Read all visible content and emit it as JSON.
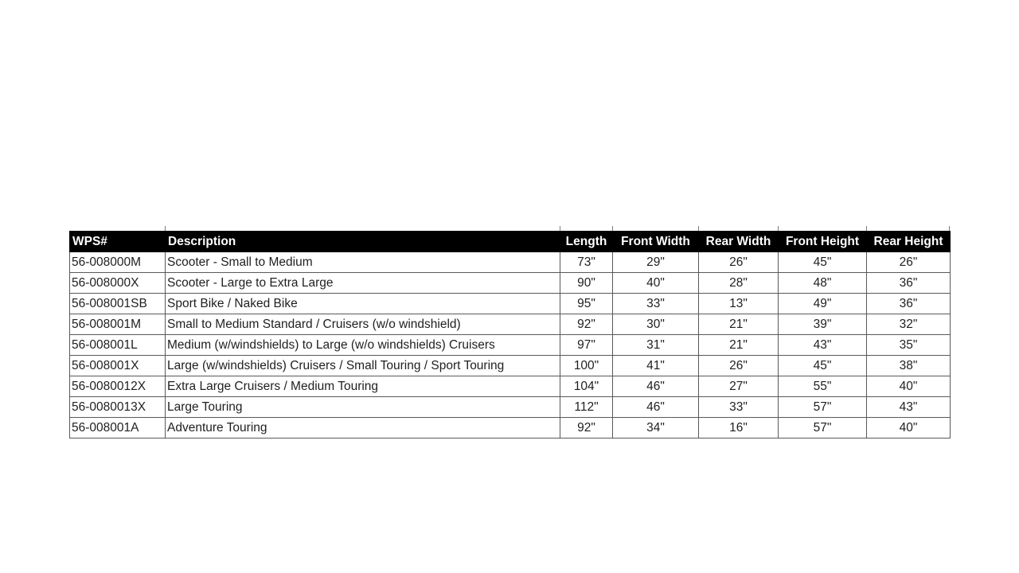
{
  "page": {
    "background": "#ffffff"
  },
  "size_chart": {
    "columns": [
      "WPS#",
      "Description",
      "Length",
      "Front Width",
      "Rear Width",
      "Front Height",
      "Rear Height"
    ],
    "rows": [
      [
        "56-008000M",
        "Scooter - Small to Medium",
        "73\"",
        "29\"",
        "26\"",
        "45\"",
        "26\""
      ],
      [
        "56-008000X",
        "Scooter - Large to Extra Large",
        "90\"",
        "40\"",
        "28\"",
        "48\"",
        "36\""
      ],
      [
        "56-008001SB",
        "Sport Bike / Naked Bike",
        "95\"",
        "33\"",
        "13\"",
        "49\"",
        "36\""
      ],
      [
        "56-008001M",
        "Small to Medium Standard / Cruisers (w/o windshield)",
        "92\"",
        "30\"",
        "21\"",
        "39\"",
        "32\""
      ],
      [
        "56-008001L",
        "Medium (w/windshields) to Large (w/o windshields) Cruisers",
        "97\"",
        "31\"",
        "21\"",
        "43\"",
        "35\""
      ],
      [
        "56-008001X",
        "Large (w/windshields) Cruisers / Small Touring / Sport Touring",
        "100\"",
        "41\"",
        "26\"",
        "45\"",
        "38\""
      ],
      [
        "56-0080012X",
        "Extra Large Cruisers / Medium Touring",
        "104\"",
        "46\"",
        "27\"",
        "55\"",
        "40\""
      ],
      [
        "56-0080013X",
        "Large Touring",
        "112\"",
        "46\"",
        "33\"",
        "57\"",
        "43\""
      ],
      [
        "56-008001A",
        "Adventure Touring",
        "92\"",
        "34\"",
        "16\"",
        "57\"",
        "40\""
      ]
    ],
    "colors": {
      "page_bg": "#ffffff",
      "header_bg": "#000000",
      "header_text": "#ffffff",
      "cell_text": "#1f1f1f",
      "border": "#595959"
    }
  }
}
